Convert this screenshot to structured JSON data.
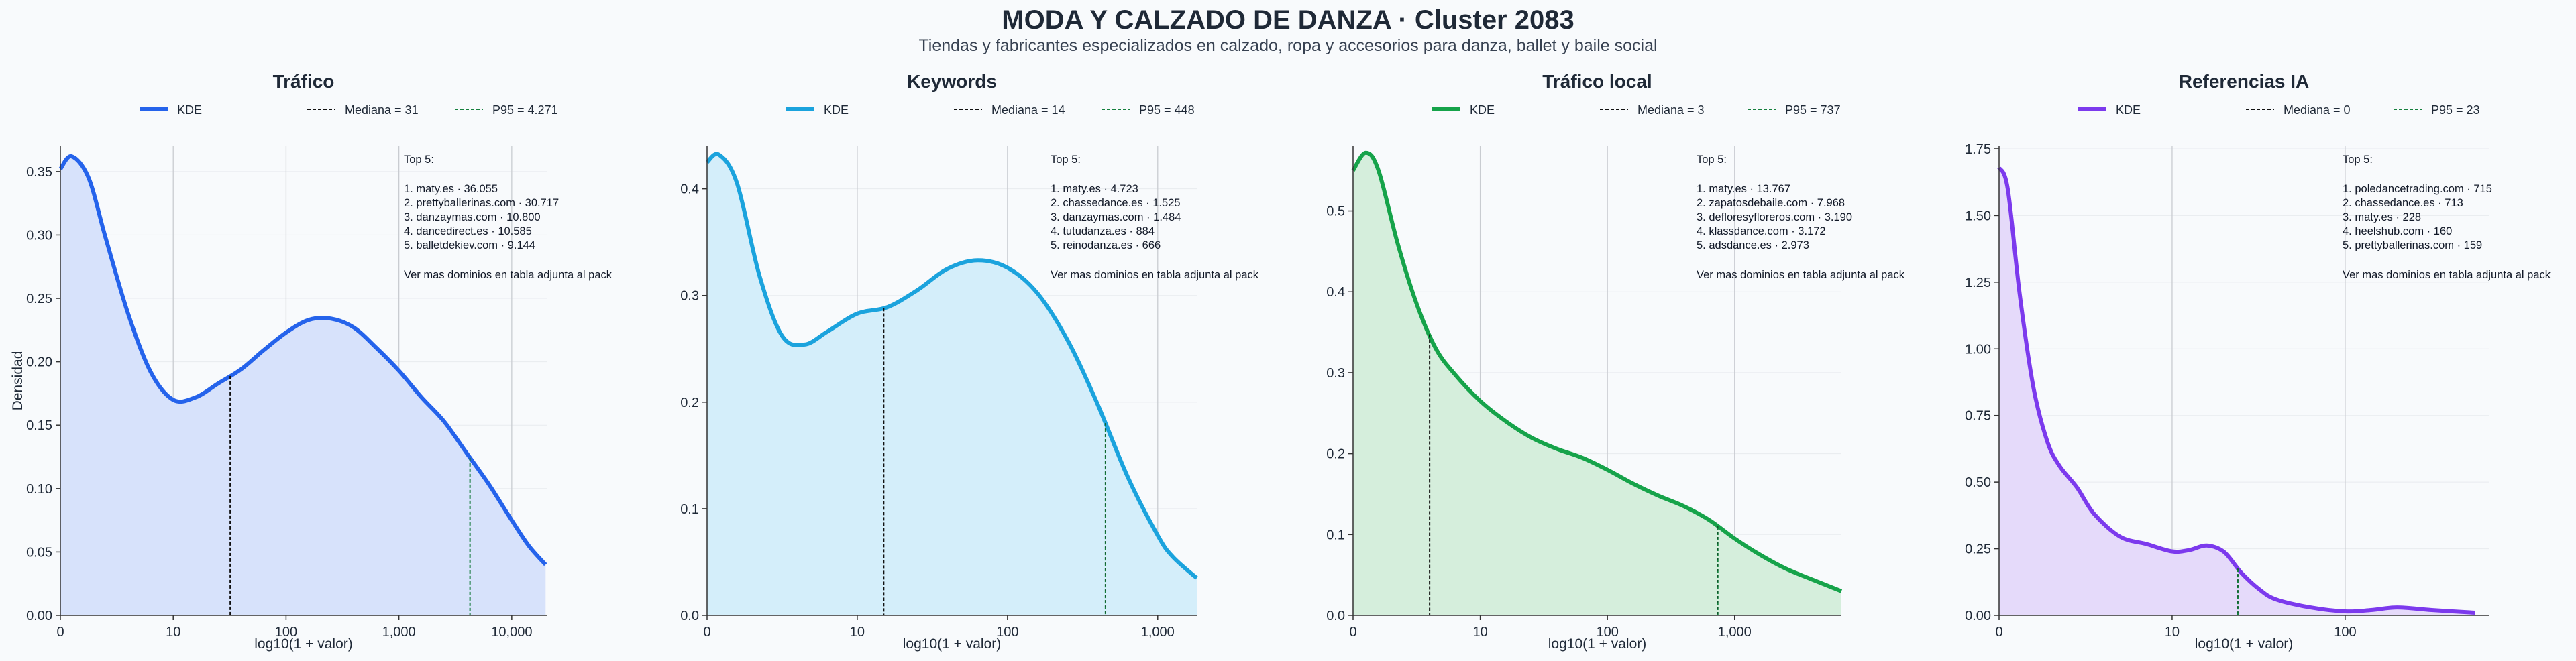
{
  "title": "MODA Y CALZADO DE DANZA · Cluster 2083",
  "subtitle": "Tiendas y fabricantes especializados en calzado, ropa y accesorios para danza, ballet y baile social",
  "chart_data": [
    {
      "type": "area",
      "title": "Tráfico",
      "color": "#2563eb",
      "fill": "#d7e2fb",
      "p95_color": "#15803d",
      "legend": {
        "kde": "KDE",
        "median": "Mediana = 31",
        "p95": "P95 = 4.271"
      },
      "xlabel": "log10(1 + valor)",
      "ylabel": "Densidad",
      "xlim": [
        0,
        4.31
      ],
      "ylim": [
        0,
        0.37
      ],
      "xticks": [
        {
          "v": 0,
          "label": "0"
        },
        {
          "v": 1,
          "label": "10"
        },
        {
          "v": 2,
          "label": "100"
        },
        {
          "v": 3,
          "label": "1,000"
        },
        {
          "v": 4,
          "label": "10,000"
        }
      ],
      "yticks": [
        {
          "v": 0,
          "label": "0.00"
        },
        {
          "v": 0.05,
          "label": "0.05"
        },
        {
          "v": 0.1,
          "label": "0.10"
        },
        {
          "v": 0.15,
          "label": "0.15"
        },
        {
          "v": 0.2,
          "label": "0.20"
        },
        {
          "v": 0.25,
          "label": "0.25"
        },
        {
          "v": 0.3,
          "label": "0.30"
        },
        {
          "v": 0.35,
          "label": "0.35"
        }
      ],
      "median_x": 1.505,
      "p95_x": 3.63,
      "kde_x": [
        0,
        0.1,
        0.25,
        0.4,
        0.6,
        0.8,
        1.0,
        1.2,
        1.4,
        1.6,
        1.8,
        2.0,
        2.2,
        2.4,
        2.6,
        2.8,
        3.0,
        3.2,
        3.4,
        3.6,
        3.8,
        4.0,
        4.15,
        4.3
      ],
      "kde_y": [
        0.352,
        0.362,
        0.345,
        0.298,
        0.238,
        0.192,
        0.17,
        0.172,
        0.183,
        0.194,
        0.209,
        0.223,
        0.233,
        0.234,
        0.227,
        0.211,
        0.193,
        0.172,
        0.153,
        0.128,
        0.103,
        0.075,
        0.055,
        0.04
      ],
      "annotation": {
        "heading": "Top 5:",
        "items": [
          "1. maty.es · 36.055",
          "2. prettyballerinas.com · 30.717",
          "3. danzaymas.com · 10.800",
          "4. dancedirect.es · 10.585",
          "5. balletdekiev.com · 9.144"
        ],
        "footer": "Ver mas dominios en tabla adjunta al pack"
      }
    },
    {
      "type": "area",
      "title": "Keywords",
      "color": "#1ba3dd",
      "fill": "#d4eefa",
      "p95_color": "#15803d",
      "legend": {
        "kde": "KDE",
        "median": "Mediana = 14",
        "p95": "P95 = 448"
      },
      "xlabel": "log10(1 + valor)",
      "ylabel": "",
      "xlim": [
        0,
        3.26
      ],
      "ylim": [
        0,
        0.44
      ],
      "xticks": [
        {
          "v": 0,
          "label": "0"
        },
        {
          "v": 1,
          "label": "10"
        },
        {
          "v": 2,
          "label": "100"
        },
        {
          "v": 3,
          "label": "1,000"
        }
      ],
      "yticks": [
        {
          "v": 0,
          "label": "0.0"
        },
        {
          "v": 0.1,
          "label": "0.1"
        },
        {
          "v": 0.2,
          "label": "0.2"
        },
        {
          "v": 0.3,
          "label": "0.3"
        },
        {
          "v": 0.4,
          "label": "0.4"
        }
      ],
      "median_x": 1.176,
      "p95_x": 2.652,
      "kde_x": [
        0,
        0.08,
        0.2,
        0.35,
        0.5,
        0.65,
        0.8,
        1.0,
        1.2,
        1.4,
        1.6,
        1.8,
        2.0,
        2.2,
        2.4,
        2.6,
        2.8,
        3.0,
        3.1,
        3.26
      ],
      "kde_y": [
        0.425,
        0.432,
        0.405,
        0.318,
        0.262,
        0.254,
        0.266,
        0.283,
        0.289,
        0.305,
        0.325,
        0.333,
        0.326,
        0.302,
        0.258,
        0.198,
        0.13,
        0.075,
        0.055,
        0.035
      ],
      "annotation": {
        "heading": "Top 5:",
        "items": [
          "1. maty.es · 4.723",
          "2. chassedance.es · 1.525",
          "3. danzaymas.com · 1.484",
          "4. tutudanza.es · 884",
          "5. reinodanza.es · 666"
        ],
        "footer": "Ver mas dominios en tabla adjunta al pack"
      }
    },
    {
      "type": "area",
      "title": "Tráfico local",
      "color": "#16a34a",
      "fill": "#d5eedc",
      "p95_color": "#15803d",
      "legend": {
        "kde": "KDE",
        "median": "Mediana = 3",
        "p95": "P95 = 737"
      },
      "xlabel": "log10(1 + valor)",
      "ylabel": "",
      "xlim": [
        0,
        3.84
      ],
      "ylim": [
        0,
        0.58
      ],
      "xticks": [
        {
          "v": 0,
          "label": "0"
        },
        {
          "v": 1,
          "label": "10"
        },
        {
          "v": 2,
          "label": "100"
        },
        {
          "v": 3,
          "label": "1,000"
        }
      ],
      "yticks": [
        {
          "v": 0,
          "label": "0.0"
        },
        {
          "v": 0.1,
          "label": "0.1"
        },
        {
          "v": 0.2,
          "label": "0.2"
        },
        {
          "v": 0.3,
          "label": "0.3"
        },
        {
          "v": 0.4,
          "label": "0.4"
        },
        {
          "v": 0.5,
          "label": "0.5"
        }
      ],
      "median_x": 0.602,
      "p95_x": 2.868,
      "kde_x": [
        0,
        0.1,
        0.2,
        0.35,
        0.5,
        0.65,
        0.8,
        1.0,
        1.2,
        1.4,
        1.6,
        1.8,
        2.0,
        2.2,
        2.4,
        2.6,
        2.8,
        3.0,
        3.2,
        3.4,
        3.6,
        3.84
      ],
      "kde_y": [
        0.55,
        0.572,
        0.55,
        0.46,
        0.385,
        0.33,
        0.298,
        0.265,
        0.24,
        0.22,
        0.206,
        0.195,
        0.18,
        0.163,
        0.148,
        0.135,
        0.118,
        0.095,
        0.075,
        0.058,
        0.045,
        0.03
      ],
      "annotation": {
        "heading": "Top 5:",
        "items": [
          "1. maty.es · 13.767",
          "2. zapatosdebaile.com · 7.968",
          "3. defloresyfloreros.com · 3.190",
          "4. klassdance.com · 3.172",
          "5. adsdance.es · 2.973"
        ],
        "footer": "Ver mas dominios en tabla adjunta al pack"
      }
    },
    {
      "type": "area",
      "title": "Referencias IA",
      "color": "#7c3aed",
      "fill": "#e5dafa",
      "p95_color": "#15803d",
      "legend": {
        "kde": "KDE",
        "median": "Mediana = 0",
        "p95": "P95 = 23"
      },
      "xlabel": "log10(1 + valor)",
      "ylabel": "",
      "xlim": [
        0,
        2.83
      ],
      "ylim": [
        0,
        1.76
      ],
      "xticks": [
        {
          "v": 0,
          "label": "0"
        },
        {
          "v": 1,
          "label": "10"
        },
        {
          "v": 2,
          "label": "100"
        }
      ],
      "yticks": [
        {
          "v": 0,
          "label": "0.00"
        },
        {
          "v": 0.25,
          "label": "0.25"
        },
        {
          "v": 0.5,
          "label": "0.50"
        },
        {
          "v": 0.75,
          "label": "0.75"
        },
        {
          "v": 1.0,
          "label": "1.00"
        },
        {
          "v": 1.25,
          "label": "1.25"
        },
        {
          "v": 1.5,
          "label": "1.50"
        },
        {
          "v": 1.75,
          "label": "1.75"
        }
      ],
      "median_x": 0,
      "p95_x": 1.38,
      "kde_x": [
        0,
        0.05,
        0.12,
        0.2,
        0.28,
        0.35,
        0.45,
        0.55,
        0.7,
        0.85,
        1.0,
        1.1,
        1.2,
        1.3,
        1.4,
        1.5,
        1.6,
        1.8,
        2.0,
        2.15,
        2.3,
        2.5,
        2.75
      ],
      "kde_y": [
        1.68,
        1.6,
        1.2,
        0.85,
        0.65,
        0.56,
        0.48,
        0.38,
        0.295,
        0.268,
        0.24,
        0.245,
        0.262,
        0.238,
        0.16,
        0.1,
        0.06,
        0.03,
        0.015,
        0.02,
        0.03,
        0.02,
        0.01
      ],
      "annotation": {
        "heading": "Top 5:",
        "items": [
          "1. poledancetrading.com · 715",
          "2. chassedance.es · 713",
          "3. maty.es · 228",
          "4. heelshub.com · 160",
          "5. prettyballerinas.com · 159"
        ],
        "footer": "Ver mas dominios en tabla adjunta al pack"
      }
    }
  ]
}
